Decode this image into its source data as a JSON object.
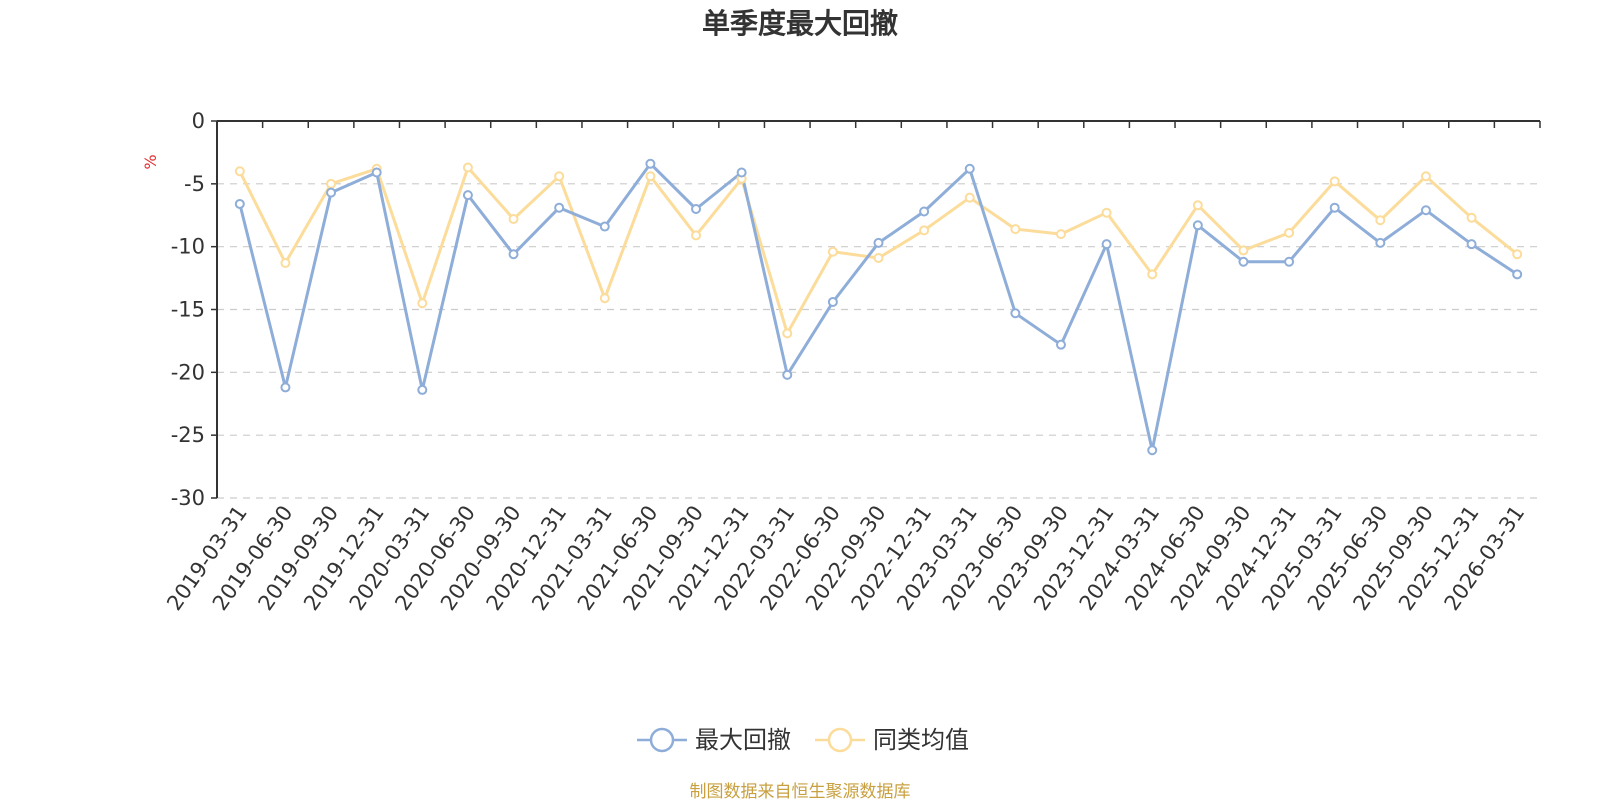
{
  "chart_data": {
    "type": "line",
    "title": "单季度最大回撤",
    "ylabel": "%",
    "xlabel": "",
    "ylim": [
      -30,
      0
    ],
    "yticks": [
      0,
      -5,
      -10,
      -15,
      -20,
      -25,
      -30
    ],
    "grid": true,
    "legend": "bottom-center",
    "categories": [
      "2019-03-31",
      "2019-06-30",
      "2019-09-30",
      "2019-12-31",
      "2020-03-31",
      "2020-06-30",
      "2020-09-30",
      "2020-12-31",
      "2021-03-31",
      "2021-06-30",
      "2021-09-30",
      "2021-12-31",
      "2022-03-31",
      "2022-06-30",
      "2022-09-30",
      "2022-12-31",
      "2023-03-31",
      "2023-06-30",
      "2023-09-30",
      "2023-12-31",
      "2024-03-31",
      "2024-06-30",
      "2024-09-30",
      "2024-12-31",
      "2025-03-31",
      "2025-06-30",
      "2025-09-30",
      "2025-12-31",
      "2026-03-31"
    ],
    "series": [
      {
        "name": "最大回撤",
        "color": "#8eadd8",
        "values": [
          -6.6,
          -21.2,
          -5.7,
          -4.1,
          -21.4,
          -5.9,
          -10.6,
          -6.9,
          -8.4,
          -3.4,
          -7.0,
          -4.1,
          -20.2,
          -14.4,
          -9.7,
          -7.2,
          -3.8,
          -15.3,
          -17.8,
          -9.8,
          -26.2,
          -8.3,
          -11.2,
          -11.2,
          -6.9,
          -9.7,
          -7.1,
          -9.8,
          -12.2
        ]
      },
      {
        "name": "同类均值",
        "color": "#fcdc9a",
        "values": [
          -4.0,
          -11.3,
          -5.0,
          -3.8,
          -14.5,
          -3.7,
          -7.8,
          -4.4,
          -14.1,
          -4.4,
          -9.1,
          -4.6,
          -16.9,
          -10.4,
          -10.9,
          -8.7,
          -6.1,
          -8.6,
          -9.0,
          -7.3,
          -12.2,
          -6.7,
          -10.3,
          -8.9,
          -4.8,
          -7.9,
          -4.4,
          -7.7,
          -10.6
        ]
      }
    ]
  },
  "source_text": "制图数据来自恒生聚源数据库",
  "source_color": "#c8a040",
  "unit_color": "#e03030"
}
